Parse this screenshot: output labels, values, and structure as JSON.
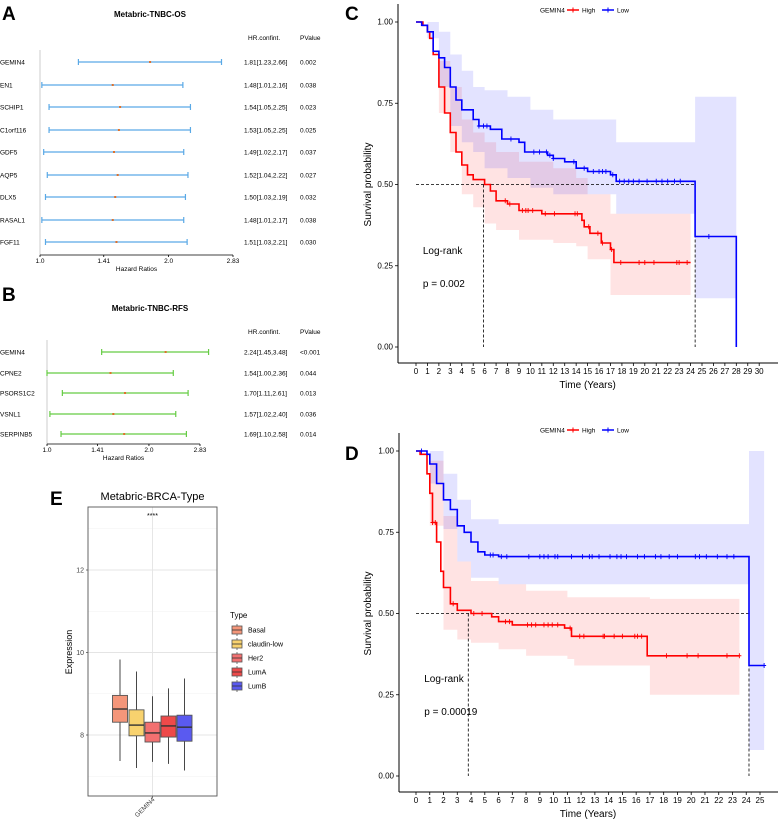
{
  "panels": {
    "a": "A",
    "b": "B",
    "c": "C",
    "d": "D",
    "e": "E"
  },
  "chart_data": [
    {
      "type": "forest",
      "panel": "A",
      "title": "Metabric-TNBC-OS",
      "col_headers": [
        "HR.confint.",
        "PValue"
      ],
      "xlabel": "Hazard Ratios",
      "x_scale": "log",
      "x_ticks": [
        "1.0",
        "1.41",
        "2.0",
        "2.83"
      ],
      "xlim": [
        1.0,
        2.83
      ],
      "color": "#5AA9E6",
      "point_color": "#E0702A",
      "rows": [
        {
          "gene": "GEMIN4",
          "hr": 1.81,
          "lo": 1.23,
          "hi": 2.66,
          "label": "1.81[1.23,2.66]",
          "p": "0.002"
        },
        {
          "gene": "EN1",
          "hr": 1.48,
          "lo": 1.01,
          "hi": 2.16,
          "label": "1.48[1.01,2.16]",
          "p": "0.038"
        },
        {
          "gene": "SCHIP1",
          "hr": 1.54,
          "lo": 1.05,
          "hi": 2.25,
          "label": "1.54[1.05,2.25]",
          "p": "0.023"
        },
        {
          "gene": "C1orf116",
          "hr": 1.53,
          "lo": 1.05,
          "hi": 2.25,
          "label": "1.53[1.05,2.25]",
          "p": "0.025"
        },
        {
          "gene": "GDF5",
          "hr": 1.49,
          "lo": 1.02,
          "hi": 2.17,
          "label": "1.49[1.02,2.17]",
          "p": "0.037"
        },
        {
          "gene": "AQP5",
          "hr": 1.52,
          "lo": 1.04,
          "hi": 2.22,
          "label": "1.52[1.04,2.22]",
          "p": "0.027"
        },
        {
          "gene": "DLX5",
          "hr": 1.5,
          "lo": 1.03,
          "hi": 2.19,
          "label": "1.50[1.03,2.19]",
          "p": "0.032"
        },
        {
          "gene": "RASAL1",
          "hr": 1.48,
          "lo": 1.01,
          "hi": 2.17,
          "label": "1.48[1.01,2.17]",
          "p": "0.038"
        },
        {
          "gene": "FGF11",
          "hr": 1.51,
          "lo": 1.03,
          "hi": 2.21,
          "label": "1.51[1.03,2.21]",
          "p": "0.030"
        }
      ]
    },
    {
      "type": "forest",
      "panel": "B",
      "title": "Metabric-TNBC-RFS",
      "col_headers": [
        "HR.confint.",
        "PValue"
      ],
      "xlabel": "Hazard Ratios",
      "x_scale": "log",
      "x_ticks": [
        "1.0",
        "1.41",
        "2.0",
        "2.83"
      ],
      "xlim": [
        1.0,
        2.83
      ],
      "color": "#66CC44",
      "point_color": "#E0702A",
      "rows": [
        {
          "gene": "GEMIN4",
          "hr": 2.24,
          "lo": 1.45,
          "hi": 3.48,
          "label": "2.24[1.45,3.48]",
          "p": "<0.001"
        },
        {
          "gene": "CPNE2",
          "hr": 1.54,
          "lo": 1.0,
          "hi": 2.36,
          "label": "1.54[1.00,2.36]",
          "p": "0.044"
        },
        {
          "gene": "PSORS1C2",
          "hr": 1.7,
          "lo": 1.11,
          "hi": 2.61,
          "label": "1.70[1.11,2.61]",
          "p": "0.013"
        },
        {
          "gene": "VSNL1",
          "hr": 1.57,
          "lo": 1.02,
          "hi": 2.4,
          "label": "1.57[1.02,2.40]",
          "p": "0.036"
        },
        {
          "gene": "SERPINB5",
          "hr": 1.69,
          "lo": 1.1,
          "hi": 2.58,
          "label": "1.69[1.10,2.58]",
          "p": "0.014"
        }
      ]
    },
    {
      "type": "line",
      "subtype": "kaplan-meier",
      "panel": "C",
      "legend_title": "GEMIN4",
      "legend_position": "top",
      "xlabel": "Time (Years)",
      "ylabel": "Survival probability",
      "xlim": [
        0,
        30
      ],
      "ylim": [
        0,
        1
      ],
      "x_ticks": [
        0,
        1,
        2,
        3,
        4,
        5,
        6,
        7,
        8,
        9,
        10,
        11,
        12,
        13,
        14,
        15,
        16,
        17,
        18,
        19,
        20,
        21,
        22,
        23,
        24,
        25,
        26,
        27,
        28,
        29,
        30
      ],
      "y_ticks": [
        "0.00",
        "0.25",
        "0.50",
        "0.75",
        "1.00"
      ],
      "annotation": [
        "Log-rank",
        "p = 0.002"
      ],
      "median_line": 0.5,
      "series": [
        {
          "name": "High",
          "color": "#FF0000",
          "median": 5.9,
          "x": [
            0,
            0.6,
            1,
            1.2,
            1.5,
            2,
            2.5,
            3,
            3.5,
            4,
            4.5,
            5,
            6,
            6.5,
            7,
            8,
            9,
            11,
            14.5,
            14.7,
            15.2,
            16.2,
            17,
            17.3
          ],
          "y": [
            1,
            0.99,
            0.97,
            0.95,
            0.9,
            0.8,
            0.72,
            0.66,
            0.6,
            0.56,
            0.53,
            0.515,
            0.5,
            0.48,
            0.45,
            0.44,
            0.42,
            0.41,
            0.39,
            0.37,
            0.35,
            0.32,
            0.3,
            0.26
          ],
          "end": 24,
          "ci_x": [
            0,
            2,
            3,
            4,
            5,
            6,
            7,
            9,
            12,
            14,
            15,
            17,
            24
          ],
          "ci_upper": [
            1,
            0.88,
            0.8,
            0.7,
            0.66,
            0.63,
            0.6,
            0.57,
            0.55,
            0.52,
            0.47,
            0.41,
            0.41
          ],
          "ci_lower": [
            1,
            0.72,
            0.6,
            0.47,
            0.43,
            0.38,
            0.36,
            0.33,
            0.32,
            0.31,
            0.27,
            0.16,
            0.16
          ],
          "censored": [
            7.8,
            8.2,
            9.3,
            9.6,
            9.8,
            10.2,
            11.3,
            12.1,
            13.9,
            14.1,
            15.1,
            15.9,
            16.3,
            17.1,
            17.9,
            19.5,
            20,
            20.8,
            22.8,
            23,
            23.7
          ]
        },
        {
          "name": "Low",
          "color": "#0000FF",
          "median": 24.4,
          "x": [
            0,
            0.5,
            1,
            1.5,
            2,
            2.5,
            3,
            3.5,
            4,
            5,
            5.5,
            6.5,
            7.5,
            9,
            9.5,
            11.5,
            12,
            13,
            14,
            15,
            17,
            17.5,
            24.4,
            28
          ],
          "y": [
            1,
            0.99,
            0.97,
            0.91,
            0.89,
            0.86,
            0.8,
            0.76,
            0.73,
            0.7,
            0.68,
            0.67,
            0.64,
            0.63,
            0.6,
            0.59,
            0.58,
            0.57,
            0.55,
            0.54,
            0.53,
            0.51,
            0.34,
            0
          ],
          "end": 28,
          "ci_x": [
            0,
            1,
            2,
            3,
            4,
            5,
            6,
            8,
            10,
            12,
            17.5,
            24.4,
            28
          ],
          "ci_upper": [
            1,
            1,
            0.97,
            0.9,
            0.85,
            0.8,
            0.79,
            0.77,
            0.73,
            0.7,
            0.63,
            0.77,
            0.77
          ],
          "ci_lower": [
            1,
            0.95,
            0.8,
            0.68,
            0.63,
            0.6,
            0.55,
            0.52,
            0.49,
            0.47,
            0.41,
            0.15,
            0.15
          ],
          "censored": [
            5.5,
            5.9,
            6.2,
            8.3,
            10.3,
            10.8,
            11.4,
            11.7,
            12,
            13.8,
            14.7,
            15.5,
            16,
            16.3,
            16.6,
            17.2,
            17.8,
            18.2,
            18.6,
            19,
            19.5,
            20.2,
            21,
            21.5,
            22,
            22.6,
            23.1,
            25.6
          ]
        }
      ]
    },
    {
      "type": "line",
      "subtype": "kaplan-meier",
      "panel": "D",
      "legend_title": "GEMIN4",
      "legend_position": "top",
      "xlabel": "Time (Years)",
      "ylabel": "Survival probability",
      "xlim": [
        0,
        25
      ],
      "ylim": [
        0,
        1
      ],
      "x_ticks": [
        0,
        1,
        2,
        3,
        4,
        5,
        6,
        7,
        8,
        9,
        10,
        11,
        12,
        13,
        14,
        15,
        16,
        17,
        18,
        19,
        20,
        21,
        22,
        23,
        24,
        25
      ],
      "y_ticks": [
        "0.00",
        "0.25",
        "0.50",
        "0.75",
        "1.00"
      ],
      "annotation": [
        "Log-rank",
        "p = 0.00019"
      ],
      "median_line": 0.5,
      "series": [
        {
          "name": "High",
          "color": "#FF0000",
          "median": 3.8,
          "x": [
            0,
            0.3,
            0.8,
            1,
            1.2,
            1.5,
            1.8,
            2,
            2.5,
            3,
            4,
            5.5,
            6,
            7,
            10.8,
            11.3,
            16.8
          ],
          "y": [
            1,
            0.99,
            0.93,
            0.87,
            0.78,
            0.72,
            0.63,
            0.58,
            0.53,
            0.51,
            0.5,
            0.49,
            0.475,
            0.465,
            0.455,
            0.43,
            0.37
          ],
          "end": 23.5,
          "ci_x": [
            0,
            1,
            2,
            3,
            4,
            6,
            8,
            11,
            11.5,
            17,
            23.5
          ],
          "ci_upper": [
            1,
            0.97,
            0.8,
            0.66,
            0.6,
            0.59,
            0.57,
            0.55,
            0.55,
            0.545,
            0.545
          ],
          "ci_lower": [
            1,
            0.77,
            0.45,
            0.42,
            0.41,
            0.39,
            0.37,
            0.36,
            0.34,
            0.25,
            0.25
          ],
          "censored": [
            1.2,
            1.4,
            2.7,
            4.2,
            4.8,
            6.5,
            6.8,
            8.1,
            8.4,
            8.7,
            9.3,
            9.6,
            9.9,
            10.3,
            11.2,
            11.9,
            12.2,
            13.6,
            13.7,
            14.4,
            15,
            15.9,
            16.1,
            16.4,
            18.2,
            19.7,
            20.5,
            22.6,
            23.5
          ]
        },
        {
          "name": "Low",
          "color": "#0000FF",
          "median": 24.2,
          "x": [
            0,
            0.8,
            1,
            1.5,
            2,
            2.5,
            3,
            3.5,
            4,
            4.5,
            5,
            6,
            24.2
          ],
          "y": [
            1,
            0.99,
            0.96,
            0.9,
            0.85,
            0.82,
            0.77,
            0.75,
            0.72,
            0.69,
            0.68,
            0.675,
            0.34
          ],
          "end": 25.3,
          "ci_x": [
            0,
            1,
            2,
            3,
            4,
            6,
            24.2,
            25.3
          ],
          "ci_upper": [
            1,
            1,
            0.93,
            0.85,
            0.79,
            0.775,
            1,
            1
          ],
          "ci_lower": [
            1,
            0.9,
            0.76,
            0.66,
            0.61,
            0.59,
            0.08,
            0.08
          ],
          "censored": [
            0.4,
            5.4,
            5.6,
            6.2,
            6.6,
            8.2,
            9,
            9.3,
            9.6,
            10.1,
            10.3,
            11.3,
            12.1,
            12.6,
            12.8,
            13.3,
            14.1,
            14.6,
            14.9,
            15.3,
            16.1,
            16.6,
            17.4,
            17.8,
            18.4,
            19,
            20.3,
            20.6,
            21.1,
            21.9,
            22.6,
            23.1,
            25.3
          ]
        }
      ]
    },
    {
      "type": "box",
      "panel": "E",
      "title": "Metabric-BRCA-Type",
      "ylabel": "Expression",
      "categories": [
        "GEMIN4"
      ],
      "ylim": [
        6.5,
        13.5
      ],
      "y_ticks": [
        8,
        10,
        12
      ],
      "significance": "****",
      "legend_title": "Type",
      "legend_position": "right",
      "grid": true,
      "series": [
        {
          "name": "Basal",
          "color": "#F4967A",
          "min": 7.37,
          "q1": 8.31,
          "median": 8.63,
          "q3": 8.96,
          "max": 9.83
        },
        {
          "name": "claudin-low",
          "color": "#F8D26E",
          "min": 7.2,
          "q1": 7.98,
          "median": 8.24,
          "q3": 8.61,
          "max": 9.54
        },
        {
          "name": "Her2",
          "color": "#F27070",
          "min": 7.35,
          "q1": 7.83,
          "median": 8.05,
          "q3": 8.31,
          "max": 8.94
        },
        {
          "name": "LumA",
          "color": "#EE4A4A",
          "min": 7.3,
          "q1": 7.95,
          "median": 8.22,
          "q3": 8.46,
          "max": 9.13
        },
        {
          "name": "LumB",
          "color": "#5A5AF0",
          "min": 7.14,
          "q1": 7.85,
          "median": 8.19,
          "q3": 8.48,
          "max": 9.37
        }
      ]
    }
  ]
}
